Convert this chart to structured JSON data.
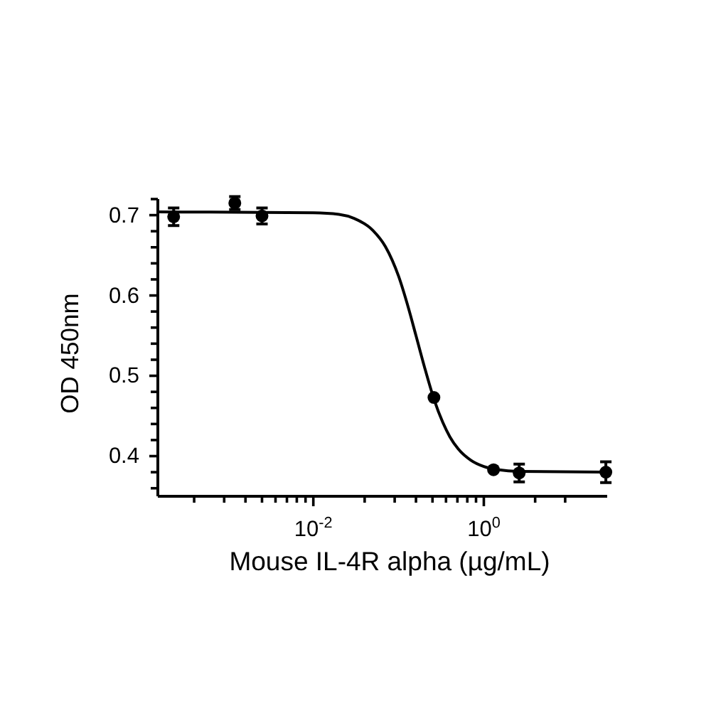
{
  "chart_data": {
    "type": "scatter",
    "xlabel": "Mouse IL-4R alpha (µg/mL)",
    "ylabel": "OD 450nm",
    "log": "x",
    "grid": false,
    "xlim": [
      0.00015,
      28
    ],
    "xticks": [
      {
        "value": 0.0004,
        "label": null
      },
      {
        "value": 0.0009,
        "label": null
      },
      {
        "value": 0.0016,
        "label": null
      },
      {
        "value": 0.0025,
        "label": null
      },
      {
        "value": 0.0036,
        "label": null
      },
      {
        "value": 0.0049,
        "label": null
      },
      {
        "value": 0.0064,
        "label": null
      },
      {
        "value": 0.0081,
        "label": null
      },
      {
        "value": 0.01,
        "label": "10$^{-2}$"
      },
      {
        "value": 0.04,
        "label": null
      },
      {
        "value": 0.09,
        "label": null
      },
      {
        "value": 0.16,
        "label": null
      },
      {
        "value": 0.25,
        "label": null
      },
      {
        "value": 0.36,
        "label": null
      },
      {
        "value": 0.49,
        "label": null
      },
      {
        "value": 0.64,
        "label": null
      },
      {
        "value": 0.81,
        "label": null
      },
      {
        "value": 1,
        "label": "10$^{0}$"
      },
      {
        "value": 4,
        "label": null
      },
      {
        "value": 9,
        "label": null
      }
    ],
    "ylim": [
      0.35,
      0.72
    ],
    "yticks": [
      {
        "value": 0.36,
        "label": null
      },
      {
        "value": 0.38,
        "label": null
      },
      0.4,
      {
        "value": 0.42,
        "label": null
      },
      {
        "value": 0.44,
        "label": null
      },
      {
        "value": 0.46,
        "label": null
      },
      {
        "value": 0.48,
        "label": null
      },
      0.5,
      {
        "value": 0.52,
        "label": null
      },
      {
        "value": 0.54,
        "label": null
      },
      {
        "value": 0.56,
        "label": null
      },
      {
        "value": 0.58,
        "label": null
      },
      0.6,
      {
        "value": 0.62,
        "label": null
      },
      {
        "value": 0.64,
        "label": null
      },
      {
        "value": 0.66,
        "label": null
      },
      {
        "value": 0.68,
        "label": null
      },
      0.7,
      {
        "value": 0.72,
        "label": null
      }
    ],
    "marker": "circle",
    "series": [
      {
        "color": "#000000",
        "x": [
          0.00023,
          0.0012,
          0.0025,
          0.26,
          1.3,
          2.6,
          27
        ],
        "values": [
          0.698,
          0.715,
          0.699,
          0.473,
          0.383,
          0.379,
          0.38
        ],
        "errors": [
          0.011,
          0.008,
          0.01,
          null,
          null,
          0.011,
          0.013
        ]
      },
      {
        "type": "line",
        "color": "#000000",
        "marker": "none",
        "line_style": "solid",
        "x": [
          0.00015,
          0.01,
          0.02,
          0.03,
          0.05,
          0.07,
          0.1,
          0.13,
          0.16,
          0.2,
          0.26,
          0.33,
          0.4,
          0.5,
          0.7,
          1,
          1.5,
          2.5,
          28
        ],
        "values": [
          0.704,
          0.703,
          0.701,
          0.696,
          0.681,
          0.661,
          0.624,
          0.585,
          0.55,
          0.512,
          0.471,
          0.442,
          0.424,
          0.409,
          0.395,
          0.387,
          0.383,
          0.381,
          0.38
        ]
      }
    ]
  }
}
